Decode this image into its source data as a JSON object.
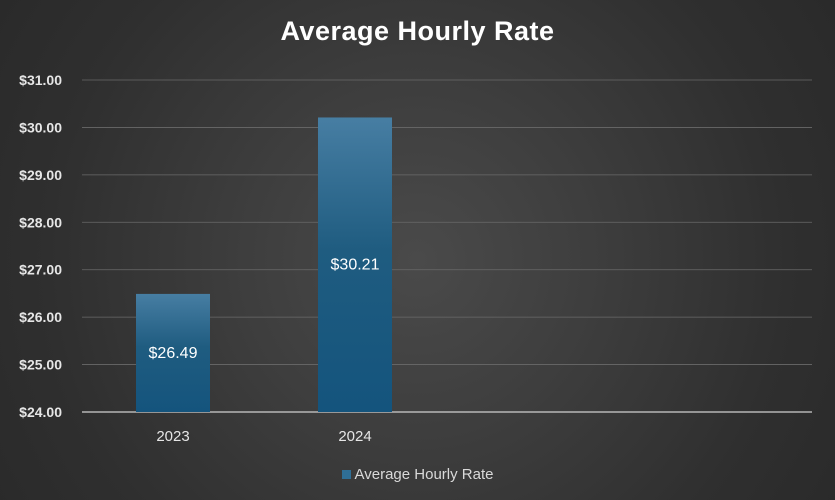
{
  "chart_data": {
    "type": "bar",
    "title": "Average Hourly Rate",
    "categories": [
      "2023",
      "2024"
    ],
    "series": [
      {
        "name": "Average Hourly Rate",
        "values": [
          26.49,
          30.21
        ],
        "color": "#2f6e95"
      }
    ],
    "data_labels": [
      "$26.49",
      "$30.21"
    ],
    "yticks": [
      "$24.00",
      "$25.00",
      "$26.00",
      "$27.00",
      "$28.00",
      "$29.00",
      "$30.00",
      "$31.00"
    ],
    "ylim": [
      24,
      31
    ],
    "grid": true,
    "legend_position": "bottom"
  }
}
